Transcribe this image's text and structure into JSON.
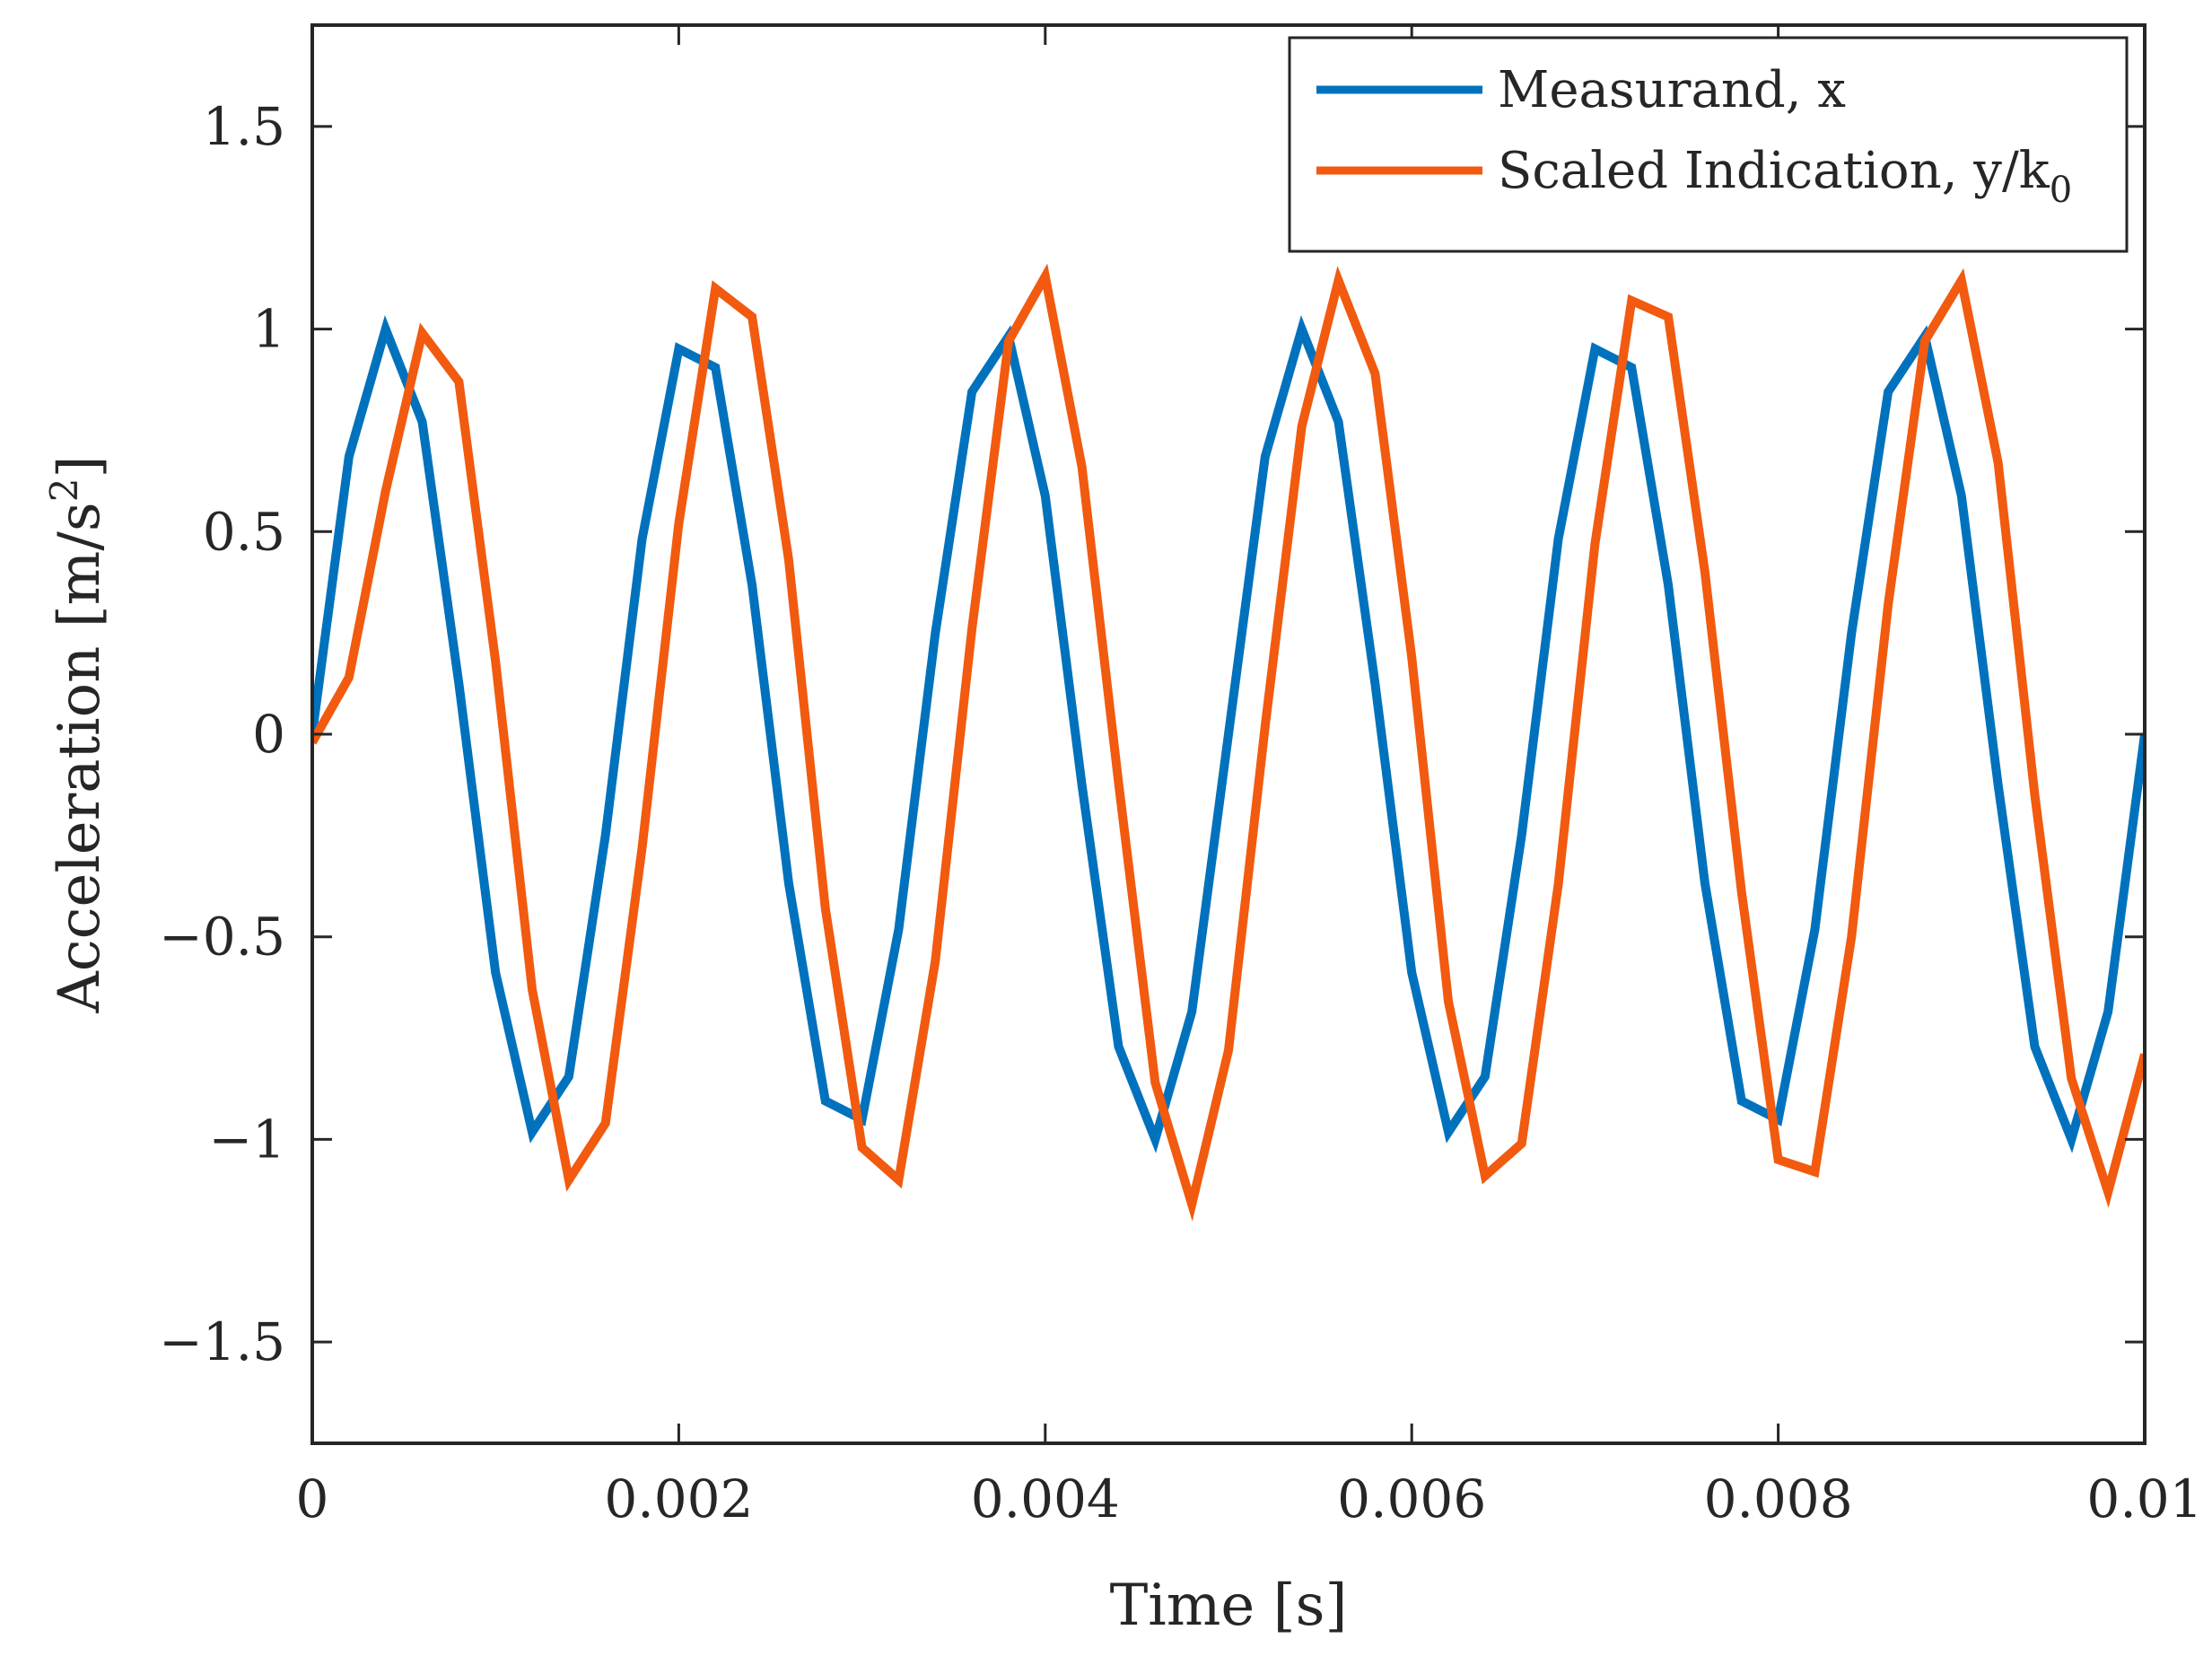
{
  "chart_data": {
    "type": "line",
    "title": "",
    "xlabel": "Time [s]",
    "ylabel_main": "Acceleration [m/s",
    "ylabel_sup": "2",
    "ylabel_end": "]",
    "xlim": [
      0,
      0.01
    ],
    "ylim": [
      -1.75,
      1.75
    ],
    "xticks": [
      0,
      0.002,
      0.004,
      0.006,
      0.008,
      0.01
    ],
    "xtick_labels": [
      "0",
      "0.002",
      "0.004",
      "0.006",
      "0.008",
      "0.01"
    ],
    "yticks": [
      -1.5,
      -1,
      -0.5,
      0,
      0.5,
      1,
      1.5
    ],
    "ytick_labels": [
      "−1.5",
      "−1",
      "−0.5",
      "0",
      "0.5",
      "1",
      "1.5"
    ],
    "grid": false,
    "legend_position": "top-right",
    "series": [
      {
        "name": "Measurand, x",
        "legend_main": "Measurand, x",
        "legend_sub": "",
        "color": "#0072BD",
        "x": [
          0,
          0.0002,
          0.0004,
          0.0006,
          0.0008,
          0.001,
          0.0012,
          0.0014,
          0.0016,
          0.0018,
          0.002,
          0.0022,
          0.0024,
          0.0026,
          0.0028,
          0.003,
          0.0032,
          0.0034,
          0.0036,
          0.0038,
          0.004,
          0.0042,
          0.0044,
          0.0046,
          0.0048,
          0.005,
          0.0052,
          0.0054,
          0.0056,
          0.0058,
          0.006,
          0.0062,
          0.0064,
          0.0066,
          0.0068,
          0.007,
          0.0072,
          0.0074,
          0.0076,
          0.0078,
          0.008,
          0.0082,
          0.0084,
          0.0086,
          0.0088,
          0.009,
          0.0092,
          0.0094,
          0.0096,
          0.0098,
          0.01
        ],
        "y": [
          0.0,
          0.685,
          1.0,
          0.771,
          0.125,
          -0.588,
          -0.982,
          -0.845,
          -0.249,
          0.482,
          0.951,
          0.905,
          0.368,
          -0.368,
          -0.905,
          -0.951,
          -0.482,
          0.249,
          0.845,
          0.982,
          0.588,
          -0.125,
          -0.771,
          -1.0,
          -0.685,
          0.0,
          0.685,
          1.0,
          0.771,
          0.125,
          -0.588,
          -0.982,
          -0.845,
          -0.249,
          0.482,
          0.951,
          0.905,
          0.368,
          -0.368,
          -0.905,
          -0.951,
          -0.482,
          0.249,
          0.845,
          0.982,
          0.588,
          -0.125,
          -0.771,
          -1.0,
          -0.685,
          0.0
        ]
      },
      {
        "name": "Scaled Indication, y/k0",
        "legend_main": "Scaled Indication, y/k",
        "legend_sub": "0",
        "color": "#F15A0F",
        "x": [
          0,
          0.0002,
          0.0004,
          0.0006,
          0.0008,
          0.001,
          0.0012,
          0.0014,
          0.0016,
          0.0018,
          0.002,
          0.0022,
          0.0024,
          0.0026,
          0.0028,
          0.003,
          0.0032,
          0.0034,
          0.0036,
          0.0038,
          0.004,
          0.0042,
          0.0044,
          0.0046,
          0.0048,
          0.005,
          0.0052,
          0.0054,
          0.0056,
          0.0058,
          0.006,
          0.0062,
          0.0064,
          0.0066,
          0.0068,
          0.007,
          0.0072,
          0.0074,
          0.0076,
          0.0078,
          0.008,
          0.0082,
          0.0084,
          0.0086,
          0.0088,
          0.009,
          0.0092,
          0.0094,
          0.0096,
          0.0098,
          0.01
        ],
        "y": [
          -0.02,
          0.14,
          0.6,
          0.99,
          0.87,
          0.18,
          -0.63,
          -1.1,
          -0.96,
          -0.28,
          0.52,
          1.1,
          1.03,
          0.43,
          -0.43,
          -1.02,
          -1.1,
          -0.56,
          0.26,
          0.97,
          1.13,
          0.66,
          -0.12,
          -0.86,
          -1.16,
          -0.78,
          0.02,
          0.76,
          1.12,
          0.89,
          0.19,
          -0.66,
          -1.09,
          -1.01,
          -0.37,
          0.47,
          1.07,
          1.03,
          0.4,
          -0.39,
          -1.05,
          -1.08,
          -0.5,
          0.32,
          0.97,
          1.12,
          0.67,
          -0.15,
          -0.85,
          -1.13,
          -0.79
        ]
      }
    ]
  }
}
